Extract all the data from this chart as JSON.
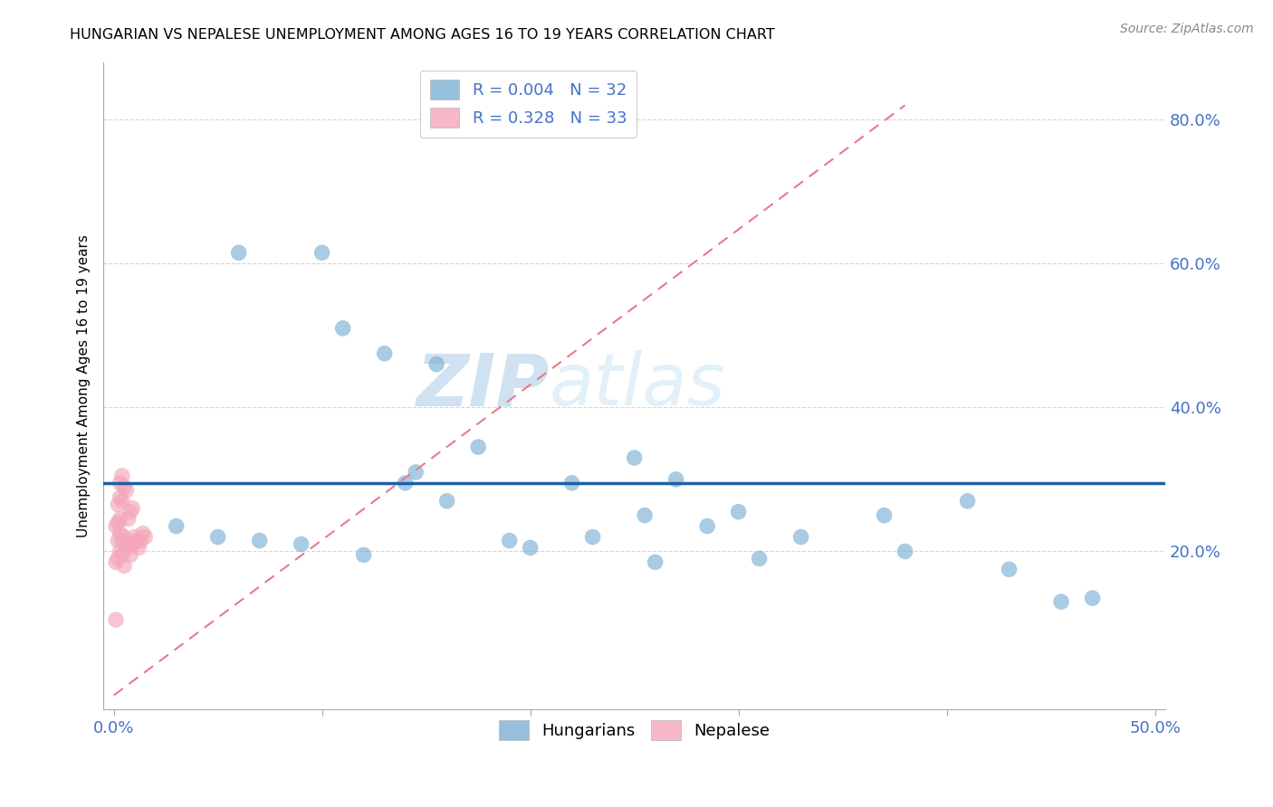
{
  "title": "HUNGARIAN VS NEPALESE UNEMPLOYMENT AMONG AGES 16 TO 19 YEARS CORRELATION CHART",
  "source": "Source: ZipAtlas.com",
  "ylabel": "Unemployment Among Ages 16 to 19 years",
  "xlim": [
    -0.005,
    0.505
  ],
  "ylim": [
    -0.02,
    0.88
  ],
  "xticks": [
    0.0,
    0.1,
    0.2,
    0.3,
    0.4,
    0.5
  ],
  "xtick_labels": [
    "0.0%",
    "",
    "",
    "",
    "",
    "50.0%"
  ],
  "yticks": [
    0.2,
    0.4,
    0.6,
    0.8
  ],
  "ytick_labels": [
    "20.0%",
    "40.0%",
    "60.0%",
    "80.0%"
  ],
  "legend_r1": "0.004",
  "legend_n1": "32",
  "legend_r2": "0.328",
  "legend_n2": "33",
  "blue_color": "#7BAFD4",
  "pink_color": "#F4A7B9",
  "trend_blue_color": "#1F5FA6",
  "trend_pink_color": "#E8798C",
  "axis_label_color": "#4472C4",
  "watermark_zip": "ZIP",
  "watermark_atlas": "atlas",
  "blue_hline_y": 0.295,
  "pink_trend_x0": 0.0,
  "pink_trend_y0": 0.0,
  "pink_trend_x1": 0.38,
  "pink_trend_y1": 0.82,
  "hungarian_x": [
    0.06,
    0.1,
    0.11,
    0.13,
    0.14,
    0.145,
    0.155,
    0.175,
    0.22,
    0.25,
    0.255,
    0.27,
    0.285,
    0.3,
    0.33,
    0.37,
    0.38,
    0.41,
    0.455,
    0.47,
    0.03,
    0.05,
    0.07,
    0.09,
    0.12,
    0.16,
    0.19,
    0.2,
    0.23,
    0.26,
    0.31,
    0.43
  ],
  "hungarian_y": [
    0.615,
    0.615,
    0.51,
    0.475,
    0.295,
    0.31,
    0.46,
    0.345,
    0.295,
    0.33,
    0.25,
    0.3,
    0.235,
    0.255,
    0.22,
    0.25,
    0.2,
    0.27,
    0.13,
    0.135,
    0.235,
    0.22,
    0.215,
    0.21,
    0.195,
    0.27,
    0.215,
    0.205,
    0.22,
    0.185,
    0.19,
    0.175
  ],
  "nepalese_x": [
    0.002,
    0.003,
    0.004,
    0.005,
    0.006,
    0.007,
    0.008,
    0.009,
    0.01,
    0.011,
    0.012,
    0.013,
    0.014,
    0.015,
    0.003,
    0.004,
    0.005,
    0.006,
    0.002,
    0.003,
    0.004,
    0.007,
    0.008,
    0.009,
    0.001,
    0.002,
    0.003,
    0.001,
    0.002,
    0.003,
    0.004,
    0.005,
    0.001
  ],
  "nepalese_y": [
    0.215,
    0.225,
    0.215,
    0.22,
    0.21,
    0.205,
    0.195,
    0.21,
    0.22,
    0.215,
    0.205,
    0.215,
    0.225,
    0.22,
    0.295,
    0.305,
    0.29,
    0.285,
    0.265,
    0.275,
    0.27,
    0.245,
    0.255,
    0.26,
    0.235,
    0.24,
    0.245,
    0.185,
    0.19,
    0.2,
    0.195,
    0.18,
    0.105
  ]
}
